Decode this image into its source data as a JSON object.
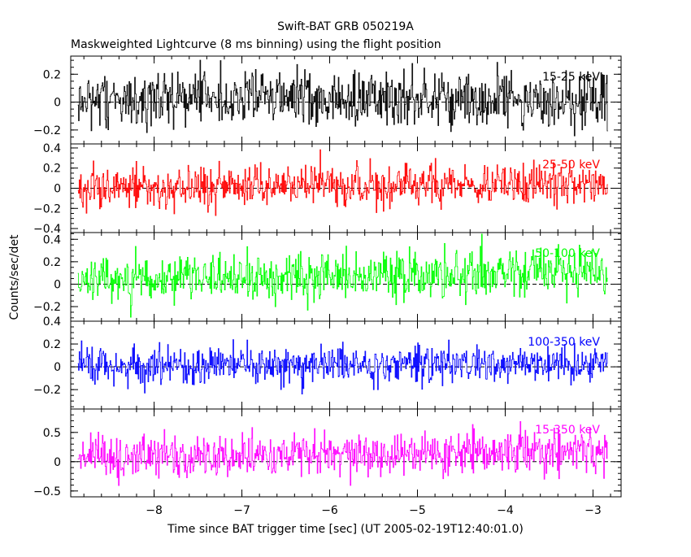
{
  "chart_data": {
    "type": "line",
    "title": "Swift-BAT GRB 050219A",
    "subtitle": "Maskweighted Lightcurve (8 ms binning) using the flight position",
    "xlabel": "Time since BAT trigger time [sec] (UT 2005-02-19T12:40:01.0)",
    "ylabel": "Counts/sec/det",
    "xlim": [
      -8.95,
      -2.68
    ],
    "xticks": [
      -8,
      -7,
      -6,
      -5,
      -4,
      -3
    ],
    "xtick_labels": [
      "−8",
      "−7",
      "−6",
      "−5",
      "−4",
      "−3"
    ],
    "data_x_range": [
      -8.87,
      -2.83
    ],
    "bin_width_sec": 0.008,
    "grid": false,
    "panels": [
      {
        "name": "15-25 keV",
        "color": "#000000",
        "ylim": [
          -0.3,
          0.33
        ],
        "yticks": [
          -0.2,
          0,
          0.2
        ],
        "ytick_labels": [
          "−0.2",
          "0",
          "0.2"
        ],
        "sigma": 0.1,
        "trend": [
          0.02,
          0.02
        ]
      },
      {
        "name": "25-50 keV",
        "color": "#ff0000",
        "ylim": [
          -0.44,
          0.44
        ],
        "yticks": [
          -0.4,
          -0.2,
          0,
          0.2,
          0.4
        ],
        "ytick_labels": [
          "−0.4",
          "−0.2",
          "0",
          "0.2",
          "0.4"
        ],
        "sigma": 0.1,
        "trend": [
          0.01,
          0.04
        ]
      },
      {
        "name": "50-100 keV",
        "color": "#00ff00",
        "ylim": [
          -0.33,
          0.46
        ],
        "yticks": [
          -0.2,
          0,
          0.2,
          0.4
        ],
        "ytick_labels": [
          "−0.2",
          "0",
          "0.2",
          "0.4"
        ],
        "sigma": 0.1,
        "trend": [
          0.03,
          0.12
        ]
      },
      {
        "name": "100-350 keV",
        "color": "#0000ff",
        "ylim": [
          -0.37,
          0.4
        ],
        "yticks": [
          -0.2,
          0,
          0.2,
          0.4
        ],
        "ytick_labels": [
          "−0.2",
          "0",
          "0.2",
          "0.4"
        ],
        "sigma": 0.08,
        "trend": [
          0.01,
          0.02
        ]
      },
      {
        "name": "15-350 keV",
        "color": "#ff00ff",
        "ylim": [
          -0.6,
          0.9
        ],
        "yticks": [
          -0.5,
          0,
          0.5
        ],
        "ytick_labels": [
          "−0.5",
          "0",
          "0.5"
        ],
        "sigma": 0.18,
        "trend": [
          0.05,
          0.2
        ]
      }
    ]
  }
}
